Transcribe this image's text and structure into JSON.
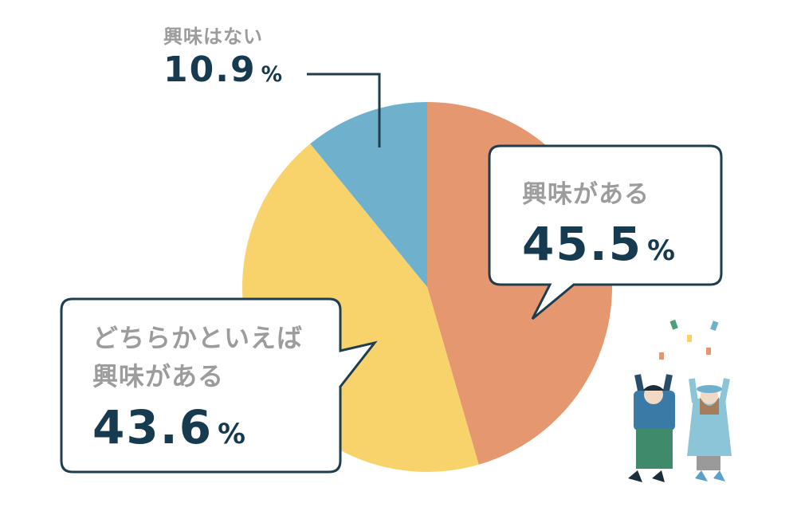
{
  "chart_data": {
    "type": "pie",
    "categories": [
      "興味がある",
      "どちらかといえば興味がある",
      "興味はない"
    ],
    "values": [
      45.5,
      43.6,
      10.9
    ],
    "unit": "%",
    "colors": [
      "#e5976f",
      "#f8d36c",
      "#6fb1cc"
    ]
  }
}
